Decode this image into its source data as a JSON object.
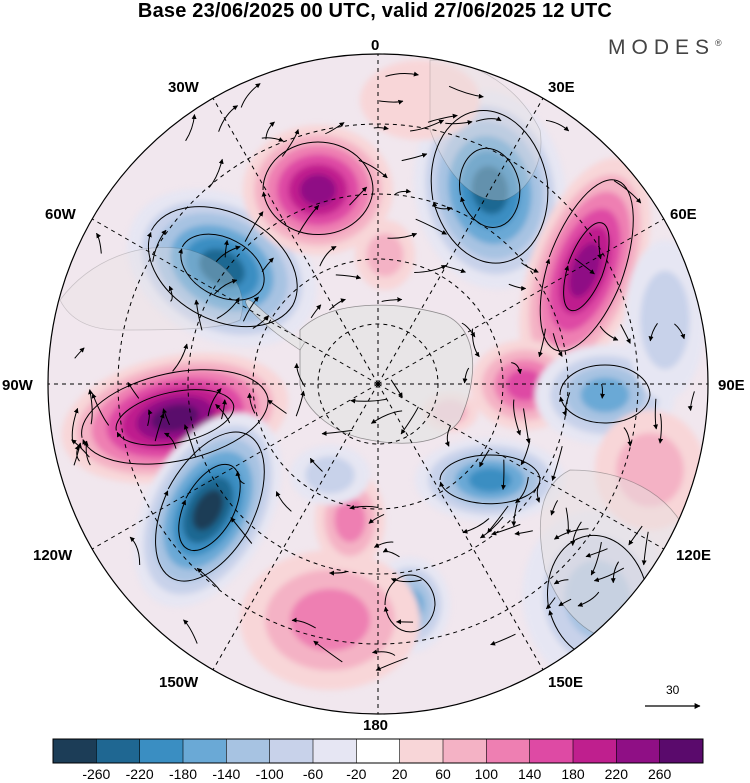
{
  "title": "Base 23/06/2025 00 UTC, valid 27/06/2025 12 UTC",
  "brand": "MODES",
  "brand_mark": "®",
  "longitude_labels": {
    "top": "0",
    "nnw": "30W",
    "nne": "30E",
    "wnw": "60W",
    "ene": "60E",
    "west": "90W",
    "east": "90E",
    "wsw": "120W",
    "ese": "120E",
    "ssw": "150W",
    "sse": "150E",
    "bottom": "180"
  },
  "reference_vector": "30",
  "colorbar": {
    "ticks": [
      "-260",
      "-220",
      "-180",
      "-140",
      "-100",
      "-60",
      "-20",
      "20",
      "60",
      "100",
      "140",
      "180",
      "220",
      "260"
    ],
    "colors": [
      "#1c3d57",
      "#1f6792",
      "#3a8ec2",
      "#6aa9d6",
      "#a7c3e2",
      "#c8d2ea",
      "#e6e6f3",
      "#ffffff",
      "#f8d6d8",
      "#f4b2c5",
      "#ee7fb2",
      "#de4aa4",
      "#bf1f8e",
      "#8f0f85",
      "#5a0a6c"
    ]
  },
  "palette": {
    "land": "#e4e4e4",
    "frame": "#000000"
  }
}
